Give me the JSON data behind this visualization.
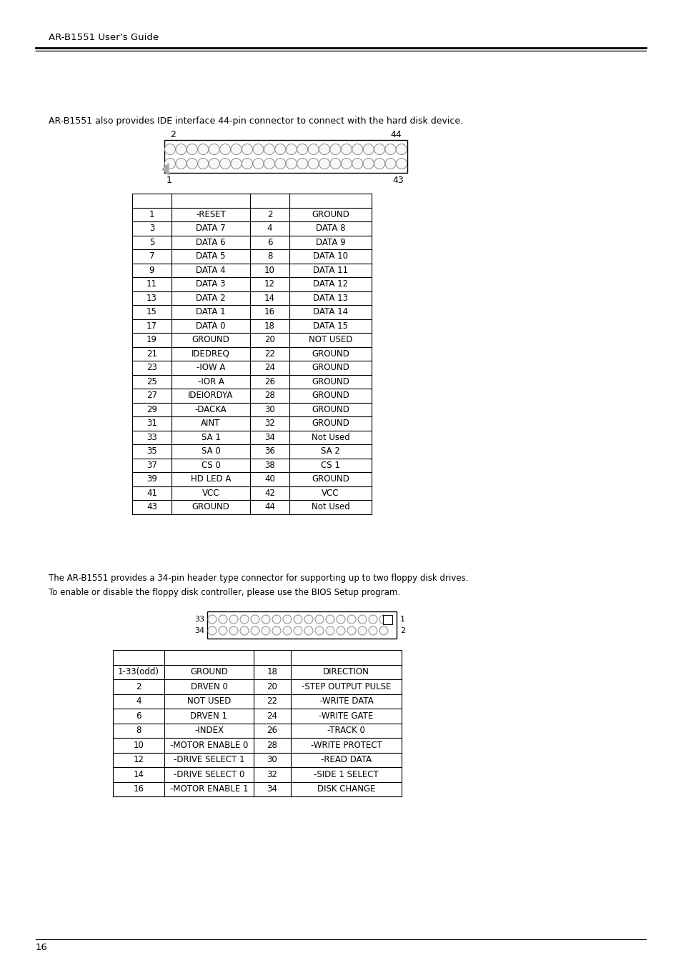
{
  "header_title": "AR-B1551 User’s Guide",
  "page_number": "16",
  "intro_text": "AR-B1551 also provides IDE interface 44-pin connector to connect with the hard disk device.",
  "fdd_intro_text1": "The AR-B1551 provides a 34-pin header type connector for supporting up to two floppy disk drives.",
  "fdd_intro_text2": "To enable or disable the floppy disk controller, please use the BIOS Setup program.",
  "ide_table": [
    [
      "1",
      "-RESET",
      "2",
      "GROUND"
    ],
    [
      "3",
      "DATA 7",
      "4",
      "DATA 8"
    ],
    [
      "5",
      "DATA 6",
      "6",
      "DATA 9"
    ],
    [
      "7",
      "DATA 5",
      "8",
      "DATA 10"
    ],
    [
      "9",
      "DATA 4",
      "10",
      "DATA 11"
    ],
    [
      "11",
      "DATA 3",
      "12",
      "DATA 12"
    ],
    [
      "13",
      "DATA 2",
      "14",
      "DATA 13"
    ],
    [
      "15",
      "DATA 1",
      "16",
      "DATA 14"
    ],
    [
      "17",
      "DATA 0",
      "18",
      "DATA 15"
    ],
    [
      "19",
      "GROUND",
      "20",
      "NOT USED"
    ],
    [
      "21",
      "IDEDREQ",
      "22",
      "GROUND"
    ],
    [
      "23",
      "-IOW A",
      "24",
      "GROUND"
    ],
    [
      "25",
      "-IOR A",
      "26",
      "GROUND"
    ],
    [
      "27",
      "IDEIORDYA",
      "28",
      "GROUND"
    ],
    [
      "29",
      "-DACKA",
      "30",
      "GROUND"
    ],
    [
      "31",
      "AINT",
      "32",
      "GROUND"
    ],
    [
      "33",
      "SA 1",
      "34",
      "Not Used"
    ],
    [
      "35",
      "SA 0",
      "36",
      "SA 2"
    ],
    [
      "37",
      "CS 0",
      "38",
      "CS 1"
    ],
    [
      "39",
      "HD LED A",
      "40",
      "GROUND"
    ],
    [
      "41",
      "VCC",
      "42",
      "VCC"
    ],
    [
      "43",
      "GROUND",
      "44",
      "Not Used"
    ]
  ],
  "fdd_table": [
    [
      "1-33(odd)",
      "GROUND",
      "18",
      "DIRECTION"
    ],
    [
      "2",
      "DRVEN 0",
      "20",
      "-STEP OUTPUT PULSE"
    ],
    [
      "4",
      "NOT USED",
      "22",
      "-WRITE DATA"
    ],
    [
      "6",
      "DRVEN 1",
      "24",
      "-WRITE GATE"
    ],
    [
      "8",
      "-INDEX",
      "26",
      "-TRACK 0"
    ],
    [
      "10",
      "-MOTOR ENABLE 0",
      "28",
      "-WRITE PROTECT"
    ],
    [
      "12",
      "-DRIVE SELECT 1",
      "30",
      "-READ DATA"
    ],
    [
      "14",
      "-DRIVE SELECT 0",
      "32",
      "-SIDE 1 SELECT"
    ],
    [
      "16",
      "-MOTOR ENABLE 1",
      "34",
      "DISK CHANGE"
    ]
  ],
  "bg_color": "#ffffff",
  "text_color": "#000000"
}
